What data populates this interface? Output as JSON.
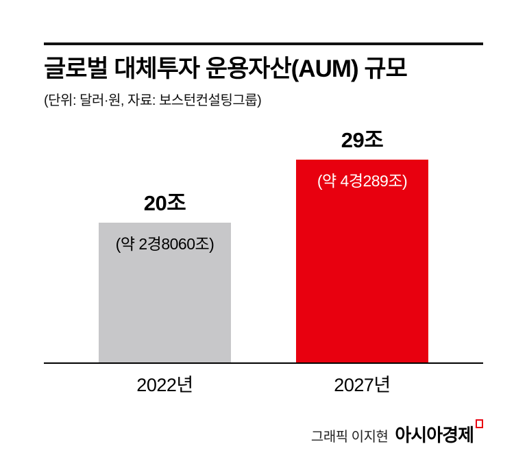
{
  "header": {
    "title": "글로벌 대체투자 운용자산(AUM) 규모",
    "subtitle": "(단위: 달러·원, 자료: 보스턴컨설팅그룹)"
  },
  "chart_data": {
    "type": "bar",
    "title": "글로벌 대체투자 운용자산(AUM) 규모",
    "unit_note": "(단위: 달러·원, 자료: 보스턴컨설팅그룹)",
    "categories": [
      "2022년",
      "2027년"
    ],
    "values": [
      20,
      29
    ],
    "ylim": [
      0,
      29
    ],
    "grid": false,
    "legend": "none",
    "bars": [
      {
        "category": "2022년",
        "value": 20,
        "value_label": "20조",
        "converted_label": "(약 2경8060조)",
        "color": "#c7c7c9",
        "label_color": "#000000"
      },
      {
        "category": "2027년",
        "value": 29,
        "value_label": "29조",
        "converted_label": "(약 4경289조)",
        "color": "#e8000f",
        "label_color": "#ffffff"
      }
    ]
  },
  "footer": {
    "credit": "그래픽 이지현",
    "brand": "아시아경제"
  },
  "colors": {
    "accent_red": "#e8000f",
    "bar_gray": "#c7c7c9",
    "text_black": "#000000"
  }
}
